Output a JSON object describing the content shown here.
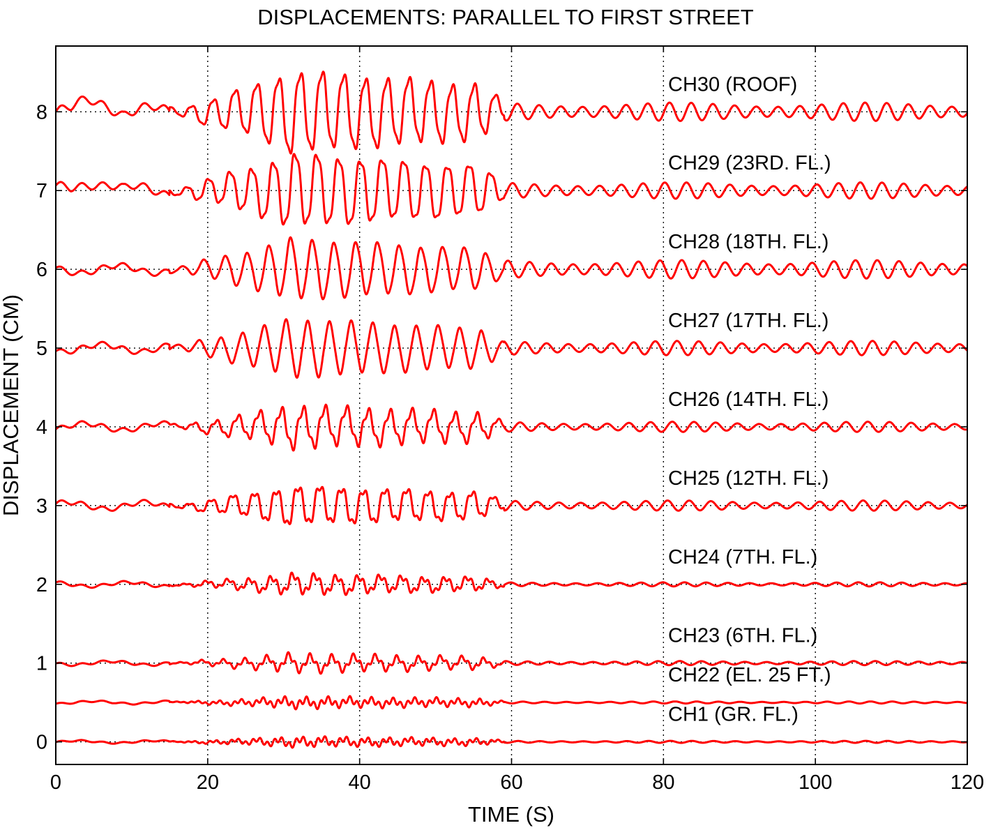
{
  "chart_data": {
    "type": "line",
    "title": "DISPLACEMENTS: PARALLEL TO FIRST STREET",
    "xlabel": "TIME (S)",
    "ylabel": "DISPLACEMENT (CM)",
    "xlim": [
      0,
      120
    ],
    "ylim": [
      -0.3,
      8.8
    ],
    "xticks": [
      "0",
      "20",
      "40",
      "60",
      "80",
      "100",
      "120"
    ],
    "yticks": [
      "0",
      "1",
      "2",
      "3",
      "4",
      "5",
      "6",
      "7",
      "8"
    ],
    "xtick_values": [
      0,
      20,
      40,
      60,
      80,
      100,
      120
    ],
    "ytick_values": [
      0,
      1,
      2,
      3,
      4,
      5,
      6,
      7,
      8
    ],
    "grid": "dotted",
    "line_color": "#ff0000",
    "series": [
      {
        "name": "CH30 (ROOF)",
        "offset": 8,
        "amp": 0.55,
        "beat": 0.8,
        "mode": "upper",
        "tail": 0.09
      },
      {
        "name": "CH29 (23RD. FL.)",
        "offset": 7,
        "amp": 0.5,
        "beat": 0.7,
        "mode": "upper",
        "tail": 0.08
      },
      {
        "name": "CH28 (18TH. FL.)",
        "offset": 6,
        "amp": 0.38,
        "beat": 0.0,
        "mode": "mid",
        "tail": 0.09
      },
      {
        "name": "CH27 (17TH. FL.)",
        "offset": 5,
        "amp": 0.36,
        "beat": 0.1,
        "mode": "mid",
        "tail": 0.07
      },
      {
        "name": "CH26 (14TH. FL.)",
        "offset": 4,
        "amp": 0.33,
        "beat": 0.6,
        "mode": "mix",
        "tail": 0.05
      },
      {
        "name": "CH25 (12TH. FL.)",
        "offset": 3,
        "amp": 0.33,
        "beat": 0.6,
        "mode": "mix",
        "tail": 0.05
      },
      {
        "name": "CH24 (7TH. FL.)",
        "offset": 2,
        "amp": 0.2,
        "beat": 0.8,
        "mode": "low",
        "tail": 0.02
      },
      {
        "name": "CH23 (6TH. FL.)",
        "offset": 1,
        "amp": 0.17,
        "beat": 0.9,
        "mode": "low",
        "tail": 0.02
      },
      {
        "name": "CH22 (EL. 25  FT.)",
        "offset": 0.5,
        "amp": 0.12,
        "beat": 1.0,
        "mode": "ground",
        "tail": 0.01
      },
      {
        "name": "CH1  (GR. FL.)",
        "offset": 0,
        "amp": 0.11,
        "beat": 1.0,
        "mode": "ground",
        "tail": 0.01
      }
    ]
  }
}
